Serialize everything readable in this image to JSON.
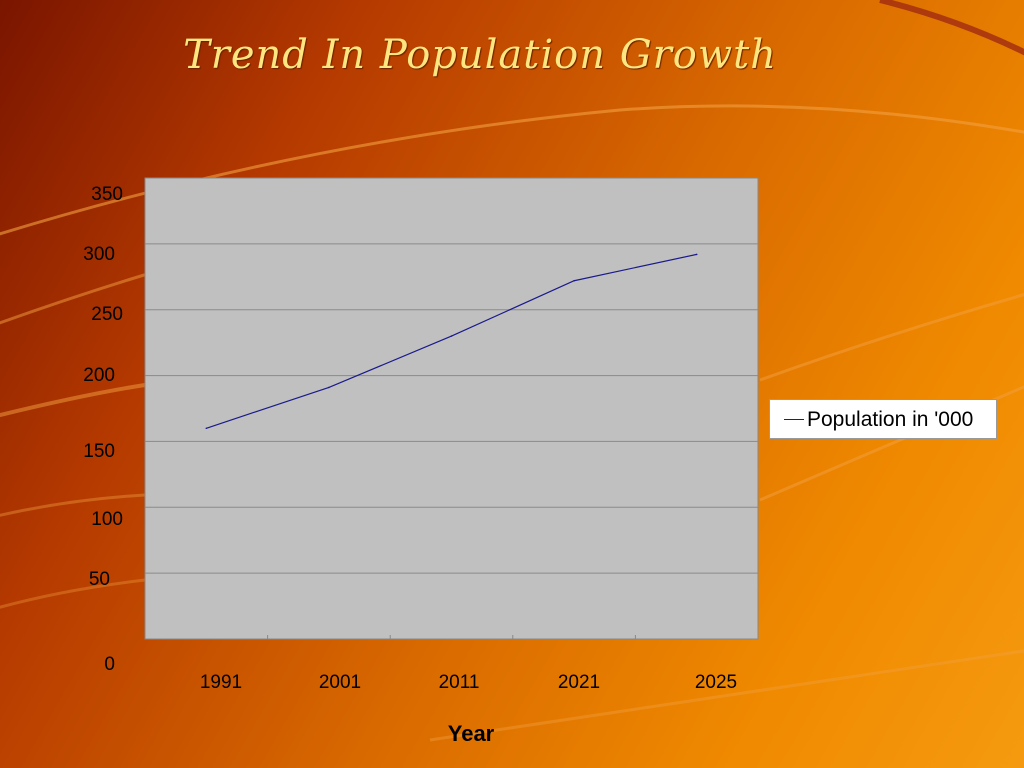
{
  "slide": {
    "title": "Trend In Population Growth"
  },
  "colors": {
    "line": "#1a1a8c",
    "plot_bg": "#c0c0c0",
    "gridline": "#8a8a8a"
  },
  "chart_data": {
    "type": "line",
    "title": "Trend In Population Growth",
    "xlabel": "Year",
    "ylabel": "",
    "categories": [
      "1991",
      "2001",
      "2011",
      "2021",
      "2025"
    ],
    "series": [
      {
        "name": "Population in '000",
        "values": [
          160,
          191,
          230,
          272,
          292
        ]
      }
    ],
    "yticks": [
      "0",
      "50",
      "100",
      "150",
      "200",
      "250",
      "300",
      "350"
    ],
    "ylim": [
      0,
      350
    ],
    "grid": true,
    "legend": "right"
  }
}
